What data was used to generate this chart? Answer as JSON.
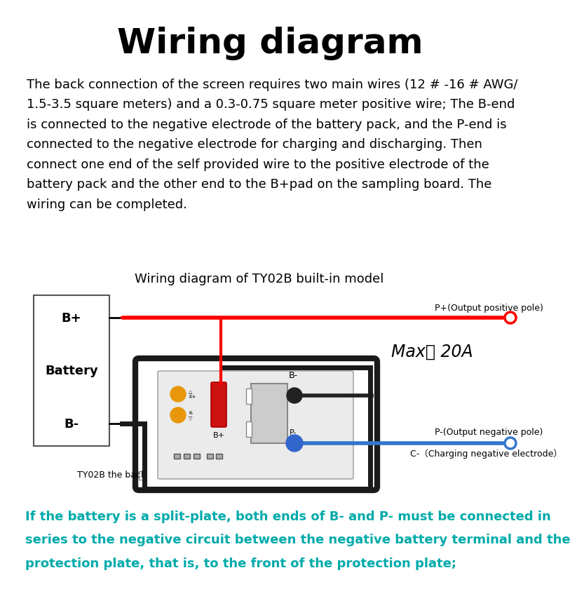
{
  "title": "Wiring diagram",
  "title_fontsize": 36,
  "body_text": "The back connection of the screen requires two main wires (12 # -16 # AWG/\n1.5-3.5 square meters) and a 0.3-0.75 square meter positive wire; The B-end\nis connected to the negative electrode of the battery pack, and the P-end is\nconnected to the negative electrode for charging and discharging. Then\nconnect one end of the self provided wire to the positive electrode of the\nbattery pack and the other end to the B+pad on the sampling board. The\nwiring can be completed.",
  "body_fontsize": 13,
  "diagram_title": "Wiring diagram of TY02B built-in model",
  "diagram_title_fontsize": 13,
  "max_label": "Max： 20A",
  "p_plus_label": "P+(Output positive pole)",
  "p_minus_label": "P-(Output negative pole)",
  "c_minus_label": "C-（Charging negative electrode）",
  "footer_text": "If the battery is a split-plate, both ends of B- and P- must be connected in\nseries to the negative circuit between the negative battery terminal and the\nprotection plate, that is, to the front of the protection plate;",
  "footer_color": "#00AAAA",
  "footer_fontsize": 13,
  "bg_color": "#ffffff",
  "text_color": "#000000",
  "tyback_label": "TY02B the back",
  "bplus_label": "B+",
  "battery_label": "Battery",
  "bminus_label": "B-",
  "k_plus_label": "K+",
  "k_minus_label": "K-",
  "bcomp_label": "B+",
  "bm_conn_label": "B-",
  "pm_conn_label": "P-"
}
